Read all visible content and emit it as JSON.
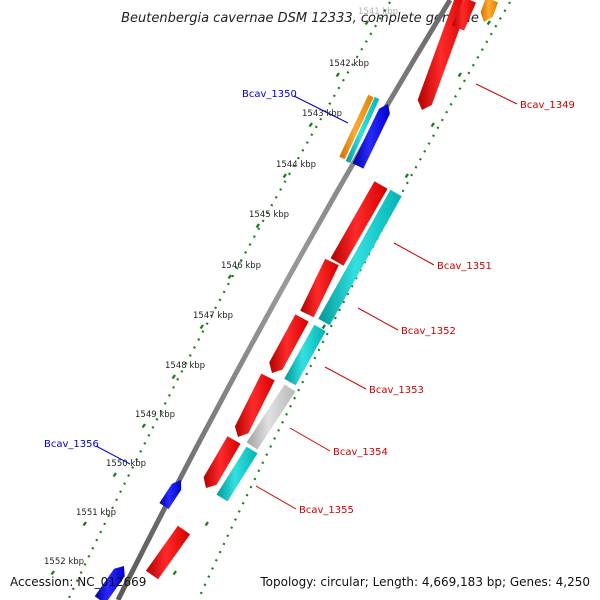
{
  "title": "Beutenbergia cavernae DSM 12333, complete genome",
  "footer": {
    "accession": "Accession: NC_012669",
    "topology": "Topology: circular; Length: 4,669,183 bp; Genes: 4,250"
  },
  "colors": {
    "backbone": "#808080",
    "ticks": "#1a7f1a",
    "red_gene": "#ff0000",
    "cyan_gene": "#00cccc",
    "blue_gene": "#0000ee",
    "orange_gene": "#ff9900",
    "gray_gene": "#c8c8c8",
    "label_red": "#cc0000",
    "label_blue": "#0000cc"
  },
  "kbp_ticks": [
    "1541 kbp",
    "1542 kbp",
    "1543 kbp",
    "1544 kbp",
    "1545 kbp",
    "1546 kbp",
    "1547 kbp",
    "1548 kbp",
    "1549 kbp",
    "1550 kbp",
    "1551 kbp",
    "1552 kbp"
  ],
  "genes": [
    {
      "label": "Bcav_1349",
      "color": "red"
    },
    {
      "label": "Bcav_1350",
      "color": "blue"
    },
    {
      "label": "Bcav_1351",
      "color": "red"
    },
    {
      "label": "Bcav_1352",
      "color": "red"
    },
    {
      "label": "Bcav_1353",
      "color": "red"
    },
    {
      "label": "Bcav_1354",
      "color": "red"
    },
    {
      "label": "Bcav_1355",
      "color": "red"
    },
    {
      "label": "Bcav_1356",
      "color": "blue"
    }
  ]
}
